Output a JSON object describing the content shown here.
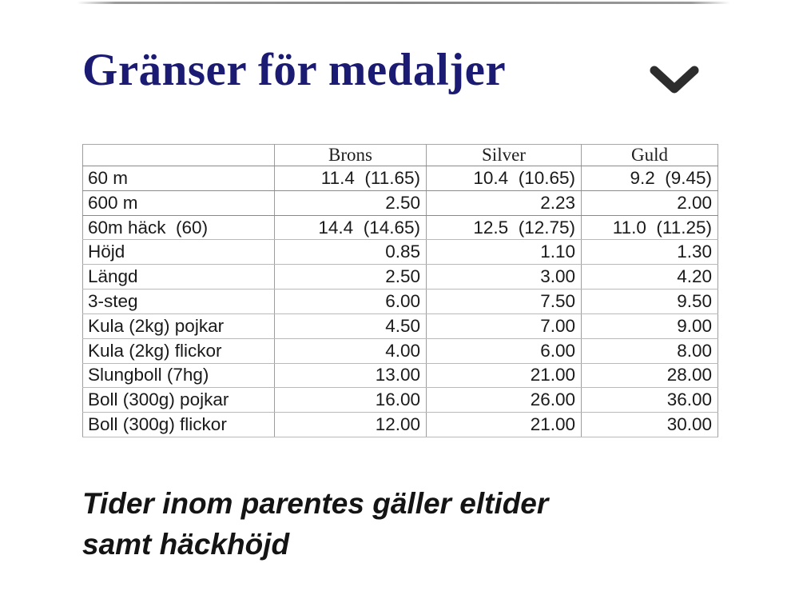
{
  "header": {
    "title": "Gränser för medaljer",
    "chevron_icon": "chevron-down",
    "title_color": "#1b1b73",
    "chevron_color": "#2d2d2d"
  },
  "table": {
    "col_headers": [
      "",
      "Brons",
      "Silver",
      "Guld"
    ],
    "rows": [
      {
        "label": "60 m",
        "brons": "11.4  (11.65)",
        "silver": "10.4  (10.65)",
        "guld": "9.2  (9.45)"
      },
      {
        "label": "600 m",
        "brons": "2.50",
        "silver": "2.23",
        "guld": "2.00"
      },
      {
        "label": "60m häck  (60)",
        "brons": "14.4  (14.65)",
        "silver": "12.5  (12.75)",
        "guld": "11.0  (11.25)"
      },
      {
        "label": "Höjd",
        "brons": "0.85",
        "silver": "1.10",
        "guld": "1.30"
      },
      {
        "label": "Längd",
        "brons": "2.50",
        "silver": "3.00",
        "guld": "4.20"
      },
      {
        "label": "3-steg",
        "brons": "6.00",
        "silver": "7.50",
        "guld": "9.50"
      },
      {
        "label": "Kula (2kg) pojkar",
        "brons": "4.50",
        "silver": "7.00",
        "guld": "9.00"
      },
      {
        "label": "Kula (2kg) flickor",
        "brons": "4.00",
        "silver": "6.00",
        "guld": "8.00"
      },
      {
        "label": "Slungboll (7hg)",
        "brons": "13.00",
        "silver": "21.00",
        "guld": "28.00"
      },
      {
        "label": "Boll (300g) pojkar",
        "brons": "16.00",
        "silver": "26.00",
        "guld": "36.00"
      },
      {
        "label": "Boll (300g) flickor",
        "brons": "12.00",
        "silver": "21.00",
        "guld": "30.00"
      }
    ]
  },
  "footnote": {
    "line1": "Tider inom parentes gäller eltider",
    "line2": "samt häckhöjd"
  }
}
